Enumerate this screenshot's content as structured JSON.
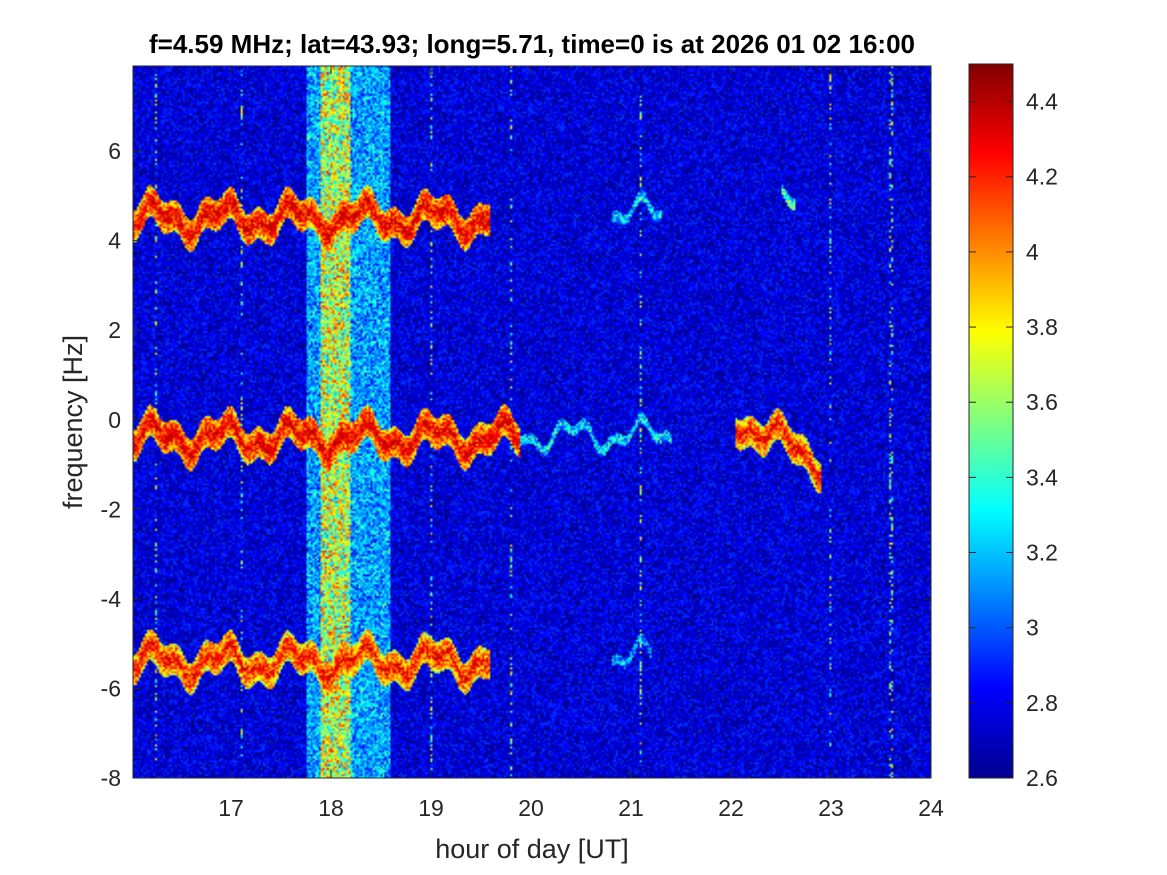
{
  "chart_data": {
    "type": "heatmap",
    "title": "f=4.59 MHz;  lat=43.93; long=5.71, time=0 is at 2026 01 02 16:00",
    "xlabel": "hour of day [UT]",
    "ylabel": "frequency [Hz]",
    "xlim": [
      16.02,
      24
    ],
    "ylim": [
      -8,
      7.9
    ],
    "x_ticks": [
      "17",
      "18",
      "19",
      "20",
      "21",
      "22",
      "23",
      "24"
    ],
    "y_ticks": [
      "-8",
      "-6",
      "-4",
      "-2",
      "0",
      "2",
      "4",
      "6"
    ],
    "colorbar": {
      "colormap": "jet",
      "range": [
        2.6,
        4.5
      ],
      "ticks": [
        "2.6",
        "2.8",
        "3",
        "3.2",
        "3.4",
        "3.6",
        "3.8",
        "4",
        "4.2",
        "4.4"
      ]
    },
    "features": {
      "broadband_band_hours": [
        17.9,
        18.2
      ],
      "broadband_halo_hours": [
        17.75,
        18.6
      ],
      "traces": [
        {
          "center_hz": 4.5,
          "x_range": [
            16.02,
            19.6
          ],
          "level": 4.4
        },
        {
          "center_hz": -0.4,
          "x_range": [
            16.02,
            19.9
          ],
          "level": 4.4
        },
        {
          "center_hz": -5.4,
          "x_range": [
            16.02,
            19.6
          ],
          "level": 4.3
        },
        {
          "center_hz": -0.35,
          "x_range": [
            19.9,
            21.4
          ],
          "level": 3.3
        },
        {
          "center_hz": 4.6,
          "x_range": [
            20.8,
            21.3
          ],
          "level": 3.3
        },
        {
          "center_hz": -5.3,
          "x_range": [
            20.8,
            21.2
          ],
          "level": 3.2
        },
        {
          "center_hz": 4.8,
          "x_range": [
            22.5,
            22.65
          ],
          "level": 3.5
        },
        {
          "center_hz": 0.0,
          "x_range": [
            22.05,
            22.9
          ],
          "slope_hz_per_hour": -1.1,
          "level": 4.3
        }
      ],
      "weak_vertical_lines_hours": [
        16.25,
        17.1,
        19.0,
        19.8,
        21.1,
        23.0,
        23.6
      ],
      "background_level": 2.75
    }
  }
}
